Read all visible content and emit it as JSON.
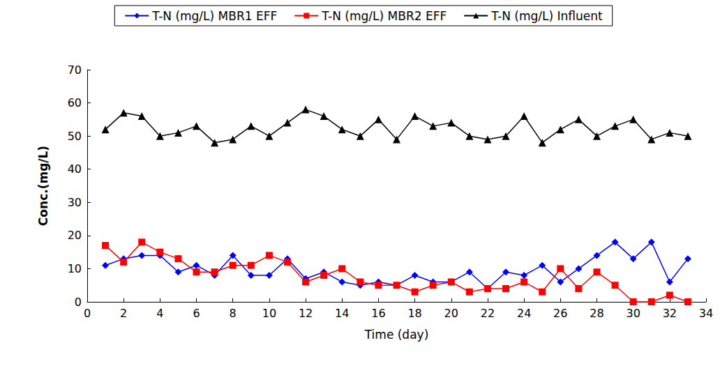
{
  "chart_data": {
    "type": "line",
    "x_label": "Time (day)",
    "y_label": "Conc.(mg/L)",
    "x": [
      1,
      2,
      3,
      4,
      5,
      6,
      7,
      8,
      9,
      10,
      11,
      12,
      13,
      14,
      15,
      16,
      17,
      18,
      19,
      20,
      21,
      22,
      23,
      24,
      25,
      26,
      27,
      28,
      29,
      30,
      31,
      32,
      33
    ],
    "series": [
      {
        "name": "T-N (mg/L) MBR1 EFF",
        "color": "#0000ff",
        "marker": "diamond",
        "values": [
          11,
          13,
          14,
          14,
          9,
          11,
          8,
          14,
          8,
          8,
          13,
          7,
          9,
          6,
          5,
          6,
          5,
          8,
          6,
          6,
          9,
          4,
          9,
          8,
          11,
          6,
          10,
          14,
          18,
          13,
          18,
          6,
          13
        ]
      },
      {
        "name": "T-N (mg/L) MBR2 EFF",
        "color": "#ff0000",
        "marker": "square",
        "values": [
          17,
          12,
          18,
          15,
          13,
          9,
          9,
          11,
          11,
          14,
          12,
          6,
          8,
          10,
          6,
          5,
          5,
          3,
          5,
          6,
          3,
          4,
          4,
          6,
          3,
          10,
          4,
          9,
          5,
          0,
          0,
          2,
          0
        ]
      },
      {
        "name": "T-N (mg/L) Influent",
        "color": "#000000",
        "marker": "triangle",
        "values": [
          52,
          57,
          56,
          50,
          51,
          53,
          48,
          49,
          53,
          50,
          54,
          58,
          56,
          52,
          50,
          55,
          49,
          56,
          53,
          54,
          50,
          49,
          50,
          56,
          48,
          52,
          55,
          50,
          53,
          55,
          49,
          51,
          50
        ]
      }
    ],
    "xlim": [
      0,
      34
    ],
    "xticks": [
      0,
      2,
      4,
      6,
      8,
      10,
      12,
      14,
      16,
      18,
      20,
      22,
      24,
      26,
      28,
      30,
      32,
      34
    ],
    "ylim": [
      0,
      70
    ],
    "yticks": [
      0,
      10,
      20,
      30,
      40,
      50,
      60,
      70
    ],
    "grid": false,
    "legend": "top"
  }
}
